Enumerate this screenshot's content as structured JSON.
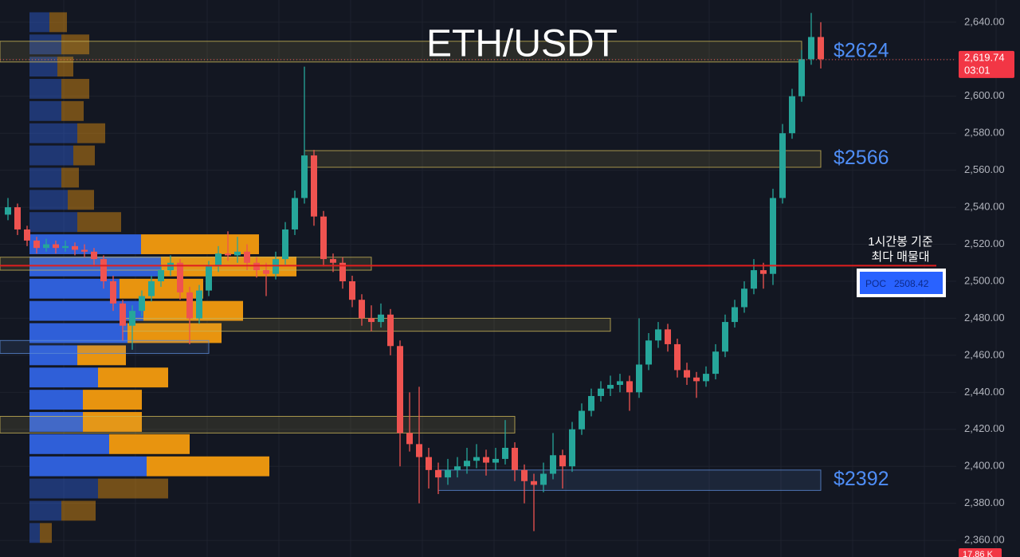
{
  "chart_data": {
    "type": "candlestick",
    "title": "ETH/USDT",
    "up_color": "#26a69a",
    "down_color": "#ef5350",
    "ohlc": [
      [
        2536,
        2545,
        2533,
        2540
      ],
      [
        2540,
        2542,
        2525,
        2528
      ],
      [
        2528,
        2530,
        2519,
        2522
      ],
      [
        2522,
        2524,
        2515,
        2518
      ],
      [
        2518,
        2523,
        2516,
        2520
      ],
      [
        2520,
        2522,
        2515,
        2518
      ],
      [
        2518,
        2522,
        2516,
        2519
      ],
      [
        2519,
        2521,
        2514,
        2517
      ],
      [
        2517,
        2520,
        2513,
        2516
      ],
      [
        2516,
        2518,
        2508,
        2512
      ],
      [
        2512,
        2514,
        2496,
        2500
      ],
      [
        2500,
        2503,
        2484,
        2488
      ],
      [
        2488,
        2490,
        2468,
        2476
      ],
      [
        2476,
        2487,
        2463,
        2484
      ],
      [
        2484,
        2495,
        2481,
        2492
      ],
      [
        2492,
        2503,
        2489,
        2500
      ],
      [
        2500,
        2509,
        2497,
        2506
      ],
      [
        2506,
        2514,
        2503,
        2510
      ],
      [
        2510,
        2512,
        2490,
        2494
      ],
      [
        2494,
        2497,
        2466,
        2480
      ],
      [
        2480,
        2498,
        2477,
        2495
      ],
      [
        2495,
        2511,
        2492,
        2508
      ],
      [
        2508,
        2519,
        2505,
        2515
      ],
      [
        2515,
        2527,
        2511,
        2514
      ],
      [
        2514,
        2524,
        2510,
        2516
      ],
      [
        2516,
        2520,
        2506,
        2510
      ],
      [
        2510,
        2513,
        2502,
        2506
      ],
      [
        2506,
        2510,
        2492,
        2504
      ],
      [
        2504,
        2516,
        2501,
        2512
      ],
      [
        2512,
        2532,
        2509,
        2528
      ],
      [
        2528,
        2549,
        2525,
        2545
      ],
      [
        2545,
        2616,
        2542,
        2568
      ],
      [
        2568,
        2571,
        2530,
        2535
      ],
      [
        2535,
        2538,
        2508,
        2512
      ],
      [
        2512,
        2515,
        2505,
        2510
      ],
      [
        2510,
        2513,
        2496,
        2500
      ],
      [
        2500,
        2503,
        2486,
        2490
      ],
      [
        2490,
        2493,
        2476,
        2480
      ],
      [
        2480,
        2487,
        2473,
        2478
      ],
      [
        2478,
        2488,
        2475,
        2482
      ],
      [
        2482,
        2485,
        2460,
        2465
      ],
      [
        2465,
        2468,
        2400,
        2418
      ],
      [
        2418,
        2440,
        2408,
        2412
      ],
      [
        2412,
        2443,
        2380,
        2405
      ],
      [
        2405,
        2410,
        2388,
        2398
      ],
      [
        2398,
        2402,
        2385,
        2394
      ],
      [
        2394,
        2404,
        2390,
        2398
      ],
      [
        2398,
        2405,
        2394,
        2400
      ],
      [
        2400,
        2410,
        2396,
        2403
      ],
      [
        2403,
        2412,
        2399,
        2405
      ],
      [
        2405,
        2409,
        2395,
        2402
      ],
      [
        2402,
        2410,
        2398,
        2404
      ],
      [
        2404,
        2425,
        2401,
        2410
      ],
      [
        2410,
        2413,
        2392,
        2398
      ],
      [
        2398,
        2401,
        2380,
        2392
      ],
      [
        2392,
        2396,
        2365,
        2390
      ],
      [
        2390,
        2402,
        2386,
        2396
      ],
      [
        2396,
        2418,
        2393,
        2406
      ],
      [
        2406,
        2409,
        2388,
        2400
      ],
      [
        2400,
        2424,
        2397,
        2420
      ],
      [
        2420,
        2434,
        2417,
        2430
      ],
      [
        2430,
        2442,
        2427,
        2438
      ],
      [
        2438,
        2446,
        2435,
        2442
      ],
      [
        2442,
        2449,
        2438,
        2444
      ],
      [
        2444,
        2450,
        2440,
        2446
      ],
      [
        2446,
        2449,
        2430,
        2440
      ],
      [
        2440,
        2480,
        2437,
        2455
      ],
      [
        2455,
        2472,
        2452,
        2468
      ],
      [
        2468,
        2478,
        2464,
        2474
      ],
      [
        2474,
        2477,
        2462,
        2466
      ],
      [
        2466,
        2469,
        2448,
        2452
      ],
      [
        2452,
        2456,
        2444,
        2448
      ],
      [
        2448,
        2451,
        2437,
        2446
      ],
      [
        2446,
        2454,
        2443,
        2450
      ],
      [
        2450,
        2466,
        2447,
        2462
      ],
      [
        2462,
        2482,
        2459,
        2478
      ],
      [
        2478,
        2490,
        2475,
        2486
      ],
      [
        2486,
        2500,
        2483,
        2496
      ],
      [
        2496,
        2512,
        2493,
        2506
      ],
      [
        2506,
        2510,
        2496,
        2504
      ],
      [
        2504,
        2550,
        2498,
        2545
      ],
      [
        2545,
        2585,
        2542,
        2580
      ],
      [
        2580,
        2604,
        2577,
        2600
      ],
      [
        2600,
        2625,
        2597,
        2620
      ],
      [
        2620,
        2645,
        2617,
        2632
      ],
      [
        2632,
        2640,
        2615,
        2620
      ]
    ],
    "ylim": [
      2351,
      2652
    ],
    "yticks": [
      {
        "value": 2640,
        "label": "2,640.00"
      },
      {
        "value": 2620,
        "label": "2,620.00"
      },
      {
        "value": 2600,
        "label": "2,600.00"
      },
      {
        "value": 2580,
        "label": "2,580.00"
      },
      {
        "value": 2560,
        "label": "2,560.00"
      },
      {
        "value": 2540,
        "label": "2,540.00"
      },
      {
        "value": 2520,
        "label": "2,520.00"
      },
      {
        "value": 2500,
        "label": "2,500.00"
      },
      {
        "value": 2480,
        "label": "2,480.00"
      },
      {
        "value": 2460,
        "label": "2,460.00"
      },
      {
        "value": 2440,
        "label": "2,440.00"
      },
      {
        "value": 2420,
        "label": "2,420.00"
      },
      {
        "value": 2400,
        "label": "2,400.00"
      },
      {
        "value": 2380,
        "label": "2,380.00"
      },
      {
        "value": 2360,
        "label": "2,360.00"
      }
    ],
    "grid": true,
    "last_price": {
      "value": 2619.74,
      "label": "2,619.74"
    },
    "countdown": "03:01",
    "poc": {
      "label": "POC",
      "value": 2508.42
    },
    "annotation": [
      "1시간봉 기준",
      "최다 매물대"
    ],
    "volume_label": "17.86 K",
    "zones": [
      {
        "top": 2629.7,
        "bottom": 2618.5,
        "from": -1,
        "to": 83,
        "color": "#c9b458",
        "label": "$2624"
      },
      {
        "top": 2570.6,
        "bottom": 2561.6,
        "from": 31,
        "to": 85,
        "color": "#c9b458",
        "label": "$2566"
      },
      {
        "top": 2513,
        "bottom": 2506,
        "from": -1,
        "to": 38,
        "color": "#c9b458"
      },
      {
        "top": 2480,
        "bottom": 2473,
        "from": 12,
        "to": 63,
        "color": "#c9b458"
      },
      {
        "top": 2468,
        "bottom": 2461,
        "from": -1,
        "to": 21,
        "color": "#5b8bd6"
      },
      {
        "top": 2427,
        "bottom": 2418,
        "from": -1,
        "to": 53,
        "color": "#c9b458"
      },
      {
        "top": 2398,
        "bottom": 2387,
        "from": 45,
        "to": 85,
        "color": "#5b8bd6",
        "label": "$2392"
      }
    ],
    "volume_profile": {
      "levels": [
        2640,
        2628,
        2616,
        2604,
        2592,
        2580,
        2568,
        2556,
        2544,
        2532,
        2520,
        2508,
        2496,
        2484,
        2472,
        2460,
        2448,
        2436,
        2424,
        2412,
        2400,
        2388,
        2376,
        2364
      ],
      "buy": [
        25,
        40,
        35,
        40,
        40,
        60,
        55,
        40,
        48,
        60,
        140,
        165,
        113,
        143,
        123,
        60,
        86,
        67,
        67,
        100,
        147,
        86,
        40,
        13
      ],
      "sell": [
        22,
        35,
        20,
        35,
        28,
        35,
        27,
        22,
        33,
        55,
        148,
        170,
        105,
        125,
        118,
        61,
        88,
        74,
        74,
        101,
        154,
        88,
        43,
        15
      ],
      "buy_color": "#2f5fd8",
      "sell_color": "#e8940f",
      "value_area": [
        2400,
        2520
      ]
    }
  }
}
